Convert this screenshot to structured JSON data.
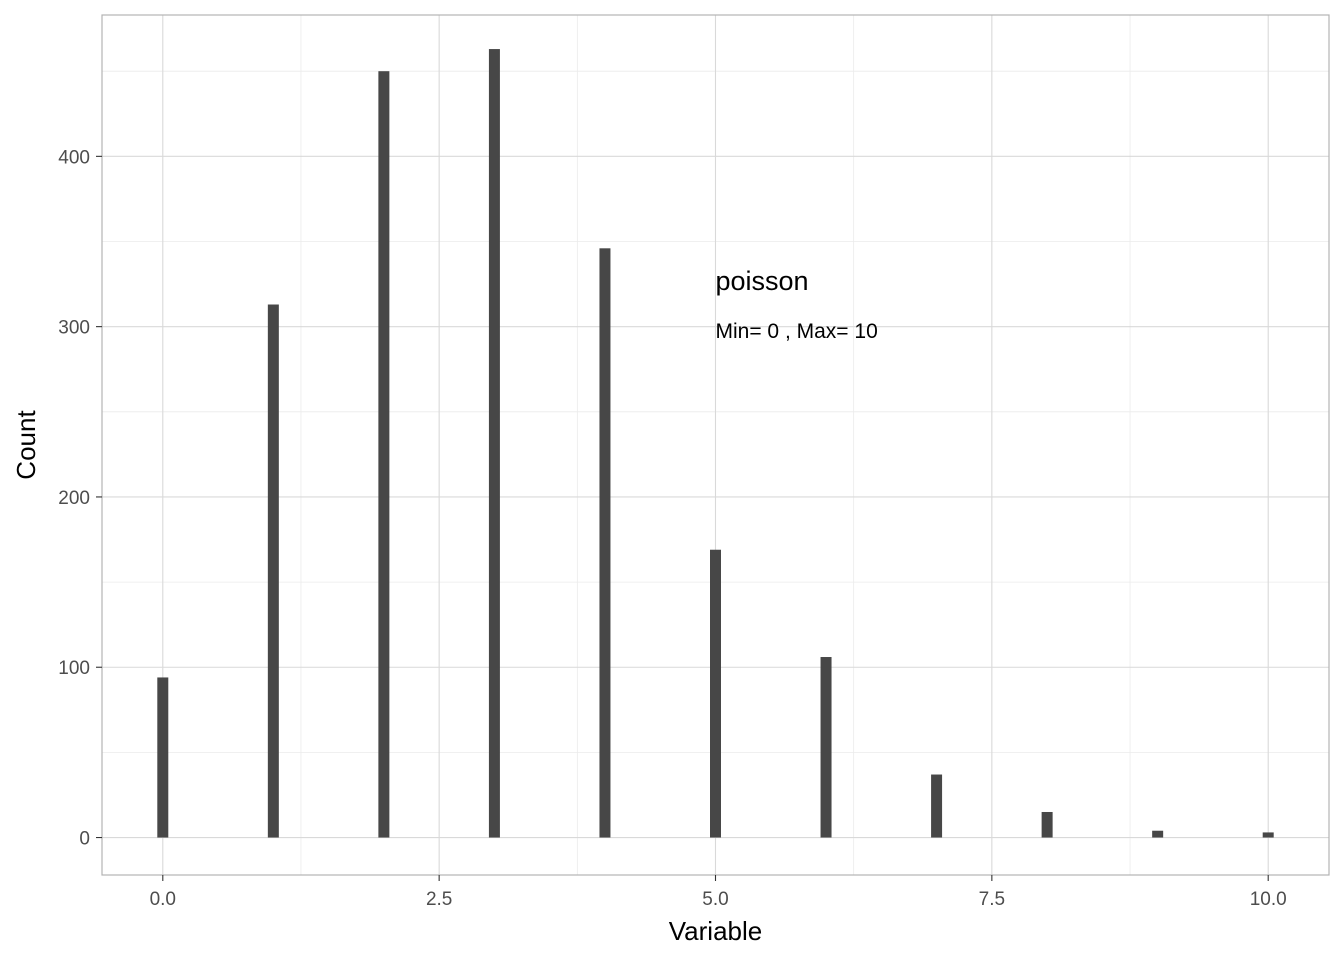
{
  "chart_data": {
    "type": "bar",
    "xlabel": "Variable",
    "ylabel": "Count",
    "x": [
      0,
      1,
      2,
      3,
      4,
      5,
      6,
      7,
      8,
      9,
      10
    ],
    "values": [
      94,
      313,
      450,
      463,
      346,
      169,
      106,
      37,
      15,
      4,
      3
    ],
    "xlim": [
      -0.55,
      10.55
    ],
    "ylim": [
      -22,
      483
    ],
    "xticks": [
      0.0,
      2.5,
      5.0,
      7.5,
      10.0
    ],
    "xtick_labels": [
      "0.0",
      "2.5",
      "5.0",
      "7.5",
      "10.0"
    ],
    "yticks": [
      0,
      100,
      200,
      300,
      400
    ],
    "ytick_labels": [
      "0",
      "100",
      "200",
      "300",
      "400"
    ],
    "grid": true,
    "annotations": {
      "title": "poisson",
      "subtitle": "Min= 0 , Max= 10"
    },
    "colors": {
      "bar": "#474747",
      "grid_major": "#d9d9d9",
      "grid_minor": "#ebebeb",
      "panel_border": "#b3b3b3",
      "tick_text": "#4d4d4d"
    }
  }
}
